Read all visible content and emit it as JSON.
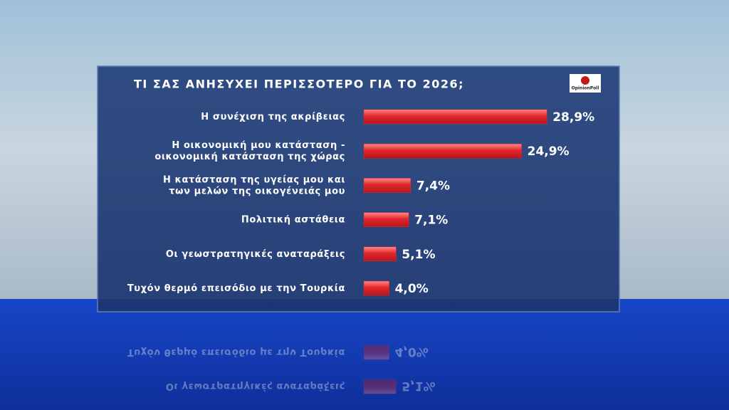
{
  "chart_data": {
    "type": "bar",
    "orientation": "horizontal",
    "title": "ΤΙ ΣΑΣ ΑΝΗΣΥΧΕΙ ΠΕΡΙΣΣΟΤΕΡΟ ΓΙΑ ΤΟ 2026;",
    "logo": "OpinionPoll",
    "categories": [
      "Η συνέχιση της ακρίβειας",
      "Η οικονομική μου κατάσταση -\nοικονομική κατάσταση της χώρας",
      "Η κατάσταση της υγείας μου και\nτων μελών της οικογένειάς μου",
      "Πολιτική αστάθεια",
      "Οι γεωστρατηγικές αναταράξεις",
      "Τυχόν θερμό επεισόδιο με την Τουρκία"
    ],
    "values": [
      28.9,
      24.9,
      7.4,
      7.1,
      5.1,
      4.0
    ],
    "value_labels": [
      "28,9%",
      "24,9%",
      "7,4%",
      "7,1%",
      "5,1%",
      "4,0%"
    ],
    "color": "#e3262c"
  }
}
